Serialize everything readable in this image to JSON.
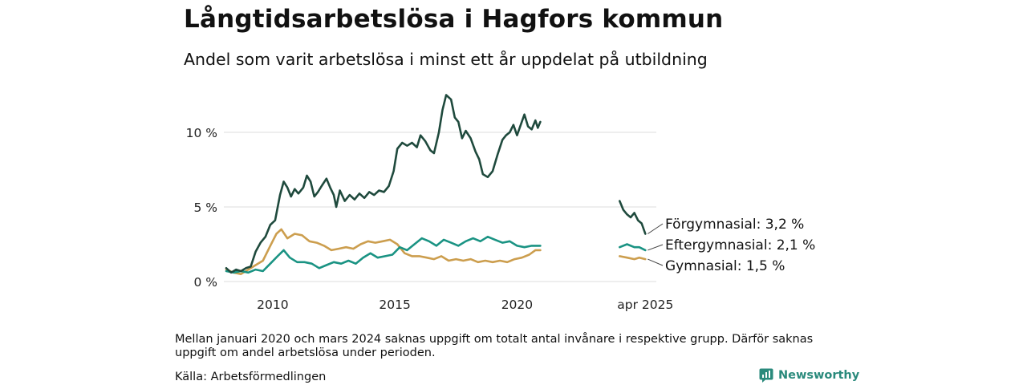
{
  "header": {
    "title": "Långtidsarbetslösa i Hagfors kommun",
    "subtitle": "Andel som varit arbetslösa i minst ett år uppdelat på utbildning"
  },
  "footer": {
    "note": "Mellan januari 2020 och mars 2024 saknas uppgift om totalt antal invånare i respektive grupp. Därför saknas uppgift om andel arbetslösa under perioden.",
    "source": "Källa: Arbetsförmedlingen",
    "brand": "Newsworthy"
  },
  "colors": {
    "forgymnasial": "#1f4a3d",
    "eftergymnasial": "#1a9383",
    "gymnasial": "#cc9e4e",
    "grid": "#e4e4e4",
    "brand": "#2a8a7c"
  },
  "chart_data": {
    "type": "line",
    "title": "Långtidsarbetslösa i Hagfors kommun",
    "subtitle": "Andel som varit arbetslösa i minst ett år uppdelat på utbildning",
    "x_ticks": [
      {
        "value": 2010,
        "label": "2010"
      },
      {
        "value": 2015,
        "label": "2015"
      },
      {
        "value": 2020,
        "label": "2020"
      },
      {
        "value": 2025.25,
        "label": "apr 2025"
      }
    ],
    "y_ticks": [
      {
        "value": 0,
        "label": "0 %"
      },
      {
        "value": 5,
        "label": "5 %"
      },
      {
        "value": 10,
        "label": "10 %"
      }
    ],
    "ylim": [
      0,
      13
    ],
    "grid": "horizontal",
    "legend": "end-labels",
    "series": [
      {
        "name": "Förgymnasial",
        "end_label": "Förgymnasial: 3,2 %",
        "color": "#1f4a3d",
        "segments": [
          [
            [
              2008.1,
              0.9
            ],
            [
              2008.3,
              0.6
            ],
            [
              2008.5,
              0.8
            ],
            [
              2008.7,
              0.7
            ],
            [
              2008.9,
              0.9
            ],
            [
              2009.1,
              1.0
            ],
            [
              2009.3,
              2.0
            ],
            [
              2009.5,
              2.6
            ],
            [
              2009.7,
              3.0
            ],
            [
              2009.9,
              3.8
            ],
            [
              2010.1,
              4.1
            ],
            [
              2010.3,
              5.8
            ],
            [
              2010.45,
              6.7
            ],
            [
              2010.6,
              6.3
            ],
            [
              2010.75,
              5.7
            ],
            [
              2010.9,
              6.2
            ],
            [
              2011.05,
              5.9
            ],
            [
              2011.25,
              6.3
            ],
            [
              2011.4,
              7.1
            ],
            [
              2011.55,
              6.7
            ],
            [
              2011.7,
              5.7
            ],
            [
              2011.85,
              6.0
            ],
            [
              2012.0,
              6.4
            ],
            [
              2012.2,
              6.9
            ],
            [
              2012.35,
              6.3
            ],
            [
              2012.5,
              5.8
            ],
            [
              2012.6,
              5.0
            ],
            [
              2012.75,
              6.1
            ],
            [
              2012.95,
              5.4
            ],
            [
              2013.15,
              5.8
            ],
            [
              2013.35,
              5.5
            ],
            [
              2013.55,
              5.9
            ],
            [
              2013.75,
              5.6
            ],
            [
              2013.95,
              6.0
            ],
            [
              2014.15,
              5.8
            ],
            [
              2014.35,
              6.1
            ],
            [
              2014.55,
              6.0
            ],
            [
              2014.75,
              6.4
            ],
            [
              2014.95,
              7.4
            ],
            [
              2015.1,
              8.9
            ],
            [
              2015.3,
              9.3
            ],
            [
              2015.5,
              9.1
            ],
            [
              2015.7,
              9.3
            ],
            [
              2015.9,
              9.0
            ],
            [
              2016.05,
              9.8
            ],
            [
              2016.25,
              9.4
            ],
            [
              2016.45,
              8.8
            ],
            [
              2016.6,
              8.6
            ],
            [
              2016.8,
              10.0
            ],
            [
              2016.95,
              11.5
            ],
            [
              2017.1,
              12.5
            ],
            [
              2017.3,
              12.2
            ],
            [
              2017.45,
              11.0
            ],
            [
              2017.6,
              10.7
            ],
            [
              2017.75,
              9.6
            ],
            [
              2017.9,
              10.1
            ],
            [
              2018.1,
              9.6
            ],
            [
              2018.3,
              8.7
            ],
            [
              2018.45,
              8.2
            ],
            [
              2018.6,
              7.2
            ],
            [
              2018.8,
              7.0
            ],
            [
              2019.0,
              7.4
            ],
            [
              2019.2,
              8.5
            ],
            [
              2019.4,
              9.5
            ],
            [
              2019.55,
              9.8
            ],
            [
              2019.7,
              10.0
            ],
            [
              2019.85,
              10.5
            ],
            [
              2020.0,
              9.8
            ],
            [
              2020.15,
              10.5
            ],
            [
              2020.3,
              11.2
            ],
            [
              2020.45,
              10.4
            ],
            [
              2020.6,
              10.2
            ],
            [
              2020.75,
              10.8
            ],
            [
              2020.85,
              10.3
            ],
            [
              2020.95,
              10.7
            ]
          ],
          [
            [
              2024.2,
              5.4
            ],
            [
              2024.35,
              4.8
            ],
            [
              2024.5,
              4.5
            ],
            [
              2024.65,
              4.3
            ],
            [
              2024.8,
              4.6
            ],
            [
              2024.95,
              4.1
            ],
            [
              2025.1,
              3.9
            ],
            [
              2025.25,
              3.2
            ]
          ]
        ]
      },
      {
        "name": "Eftergymnasial",
        "end_label": "Eftergymnasial: 2,1 %",
        "color": "#1a9383",
        "segments": [
          [
            [
              2008.1,
              0.7
            ],
            [
              2008.4,
              0.6
            ],
            [
              2008.7,
              0.7
            ],
            [
              2009.0,
              0.6
            ],
            [
              2009.3,
              0.8
            ],
            [
              2009.6,
              0.7
            ],
            [
              2009.9,
              1.2
            ],
            [
              2010.2,
              1.7
            ],
            [
              2010.45,
              2.1
            ],
            [
              2010.7,
              1.6
            ],
            [
              2011.0,
              1.3
            ],
            [
              2011.3,
              1.3
            ],
            [
              2011.6,
              1.2
            ],
            [
              2011.9,
              0.9
            ],
            [
              2012.2,
              1.1
            ],
            [
              2012.5,
              1.3
            ],
            [
              2012.8,
              1.2
            ],
            [
              2013.1,
              1.4
            ],
            [
              2013.4,
              1.2
            ],
            [
              2013.7,
              1.6
            ],
            [
              2014.0,
              1.9
            ],
            [
              2014.3,
              1.6
            ],
            [
              2014.6,
              1.7
            ],
            [
              2014.9,
              1.8
            ],
            [
              2015.2,
              2.3
            ],
            [
              2015.5,
              2.1
            ],
            [
              2015.8,
              2.5
            ],
            [
              2016.1,
              2.9
            ],
            [
              2016.4,
              2.7
            ],
            [
              2016.7,
              2.4
            ],
            [
              2017.0,
              2.8
            ],
            [
              2017.3,
              2.6
            ],
            [
              2017.6,
              2.4
            ],
            [
              2017.9,
              2.7
            ],
            [
              2018.2,
              2.9
            ],
            [
              2018.5,
              2.7
            ],
            [
              2018.8,
              3.0
            ],
            [
              2019.1,
              2.8
            ],
            [
              2019.4,
              2.6
            ],
            [
              2019.7,
              2.7
            ],
            [
              2020.0,
              2.4
            ],
            [
              2020.3,
              2.3
            ],
            [
              2020.6,
              2.4
            ],
            [
              2020.95,
              2.4
            ]
          ],
          [
            [
              2024.2,
              2.3
            ],
            [
              2024.5,
              2.5
            ],
            [
              2024.8,
              2.3
            ],
            [
              2025.0,
              2.3
            ],
            [
              2025.25,
              2.1
            ]
          ]
        ]
      },
      {
        "name": "Gymnasial",
        "end_label": "Gymnasial: 1,5 %",
        "color": "#cc9e4e",
        "segments": [
          [
            [
              2008.1,
              0.8
            ],
            [
              2008.4,
              0.6
            ],
            [
              2008.7,
              0.5
            ],
            [
              2009.0,
              0.8
            ],
            [
              2009.3,
              1.1
            ],
            [
              2009.6,
              1.4
            ],
            [
              2009.9,
              2.4
            ],
            [
              2010.15,
              3.2
            ],
            [
              2010.35,
              3.5
            ],
            [
              2010.6,
              2.9
            ],
            [
              2010.9,
              3.2
            ],
            [
              2011.2,
              3.1
            ],
            [
              2011.5,
              2.7
            ],
            [
              2011.8,
              2.6
            ],
            [
              2012.1,
              2.4
            ],
            [
              2012.4,
              2.1
            ],
            [
              2012.7,
              2.2
            ],
            [
              2013.0,
              2.3
            ],
            [
              2013.3,
              2.2
            ],
            [
              2013.6,
              2.5
            ],
            [
              2013.9,
              2.7
            ],
            [
              2014.2,
              2.6
            ],
            [
              2014.5,
              2.7
            ],
            [
              2014.8,
              2.8
            ],
            [
              2015.1,
              2.5
            ],
            [
              2015.4,
              1.9
            ],
            [
              2015.7,
              1.7
            ],
            [
              2016.0,
              1.7
            ],
            [
              2016.3,
              1.6
            ],
            [
              2016.6,
              1.5
            ],
            [
              2016.9,
              1.7
            ],
            [
              2017.2,
              1.4
            ],
            [
              2017.5,
              1.5
            ],
            [
              2017.8,
              1.4
            ],
            [
              2018.1,
              1.5
            ],
            [
              2018.4,
              1.3
            ],
            [
              2018.7,
              1.4
            ],
            [
              2019.0,
              1.3
            ],
            [
              2019.3,
              1.4
            ],
            [
              2019.6,
              1.3
            ],
            [
              2019.9,
              1.5
            ],
            [
              2020.2,
              1.6
            ],
            [
              2020.5,
              1.8
            ],
            [
              2020.75,
              2.1
            ],
            [
              2020.95,
              2.1
            ]
          ],
          [
            [
              2024.2,
              1.7
            ],
            [
              2024.5,
              1.6
            ],
            [
              2024.8,
              1.5
            ],
            [
              2025.0,
              1.6
            ],
            [
              2025.25,
              1.5
            ]
          ]
        ]
      }
    ]
  }
}
